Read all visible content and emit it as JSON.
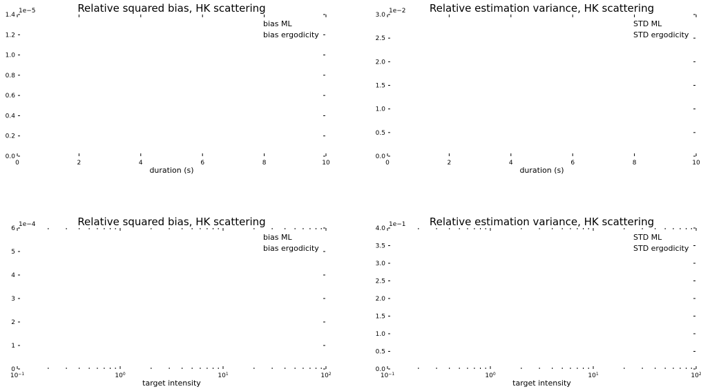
{
  "chart_data": [
    {
      "type": "line",
      "title": "Relative squared bias, HK scattering",
      "xlabel": "duration (s)",
      "ylabel": "",
      "xscale": "linear",
      "xlim": [
        0,
        10
      ],
      "ylim": [
        0,
        1.4
      ],
      "xticks": [
        "0",
        "2",
        "4",
        "6",
        "8",
        "10"
      ],
      "yticks": [
        "0.0",
        "0.2",
        "0.4",
        "0.6",
        "0.8",
        "1.0",
        "1.2",
        "1.4"
      ],
      "y_offset_text": "1e−5",
      "legend": [
        "bias ML",
        "bias ergodicity"
      ],
      "legend_position": "upper right",
      "series": []
    },
    {
      "type": "line",
      "title": "Relative estimation variance, HK scattering",
      "xlabel": "duration (s)",
      "ylabel": "",
      "xscale": "linear",
      "xlim": [
        0,
        10
      ],
      "ylim": [
        0,
        3.0
      ],
      "xticks": [
        "0",
        "2",
        "4",
        "6",
        "8",
        "10"
      ],
      "yticks": [
        "0.0",
        "0.5",
        "1.0",
        "1.5",
        "2.0",
        "2.5",
        "3.0"
      ],
      "y_offset_text": "1e−2",
      "legend": [
        "STD ML",
        "STD ergodicity"
      ],
      "legend_position": "upper right",
      "series": []
    },
    {
      "type": "line",
      "title": "Relative squared bias, HK scattering",
      "xlabel": "target intensity",
      "ylabel": "",
      "xscale": "log",
      "xlim": [
        0.1,
        100
      ],
      "ylim": [
        0,
        6
      ],
      "xticks": [
        {
          "base": "10",
          "exp": "−1"
        },
        {
          "base": "10",
          "exp": "0"
        },
        {
          "base": "10",
          "exp": "1"
        },
        {
          "base": "10",
          "exp": "2"
        }
      ],
      "yticks": [
        "0",
        "1",
        "2",
        "3",
        "4",
        "5",
        "6"
      ],
      "y_offset_text": "1e−4",
      "legend": [
        "bias ML",
        "bias ergodicity"
      ],
      "legend_position": "upper right",
      "series": []
    },
    {
      "type": "line",
      "title": "Relative estimation variance, HK scattering",
      "xlabel": "target intensity",
      "ylabel": "",
      "xscale": "log",
      "xlim": [
        0.1,
        100
      ],
      "ylim": [
        0,
        4.0
      ],
      "xticks": [
        {
          "base": "10",
          "exp": "−1"
        },
        {
          "base": "10",
          "exp": "0"
        },
        {
          "base": "10",
          "exp": "1"
        },
        {
          "base": "10",
          "exp": "2"
        }
      ],
      "yticks": [
        "0.0",
        "0.5",
        "1.0",
        "1.5",
        "2.0",
        "2.5",
        "3.0",
        "3.5",
        "4.0"
      ],
      "y_offset_text": "1e−1",
      "legend": [
        "STD ML",
        "STD ergodicity"
      ],
      "legend_position": "upper right",
      "series": []
    }
  ]
}
